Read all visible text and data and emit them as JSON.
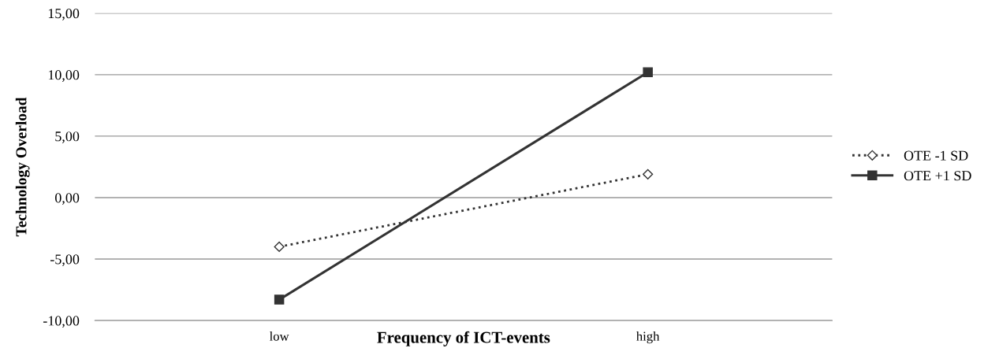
{
  "chart_data": {
    "type": "line",
    "xlabel": "Frequency of ICT-events",
    "ylabel": "Technology Overload",
    "categories": [
      "low",
      "high"
    ],
    "series": [
      {
        "name": "OTE -1 SD",
        "color": "#333333",
        "values": [
          -4.0,
          1.9
        ],
        "marker": "diamond",
        "line_style": "dotted"
      },
      {
        "name": "OTE +1 SD",
        "color": "#333333",
        "values": [
          -8.3,
          10.2
        ],
        "marker": "square",
        "line_style": "solid"
      }
    ],
    "ylim": [
      -10,
      15
    ],
    "yticks": [
      {
        "value": -10,
        "label": "-10,00"
      },
      {
        "value": -5,
        "label": "-5,00"
      },
      {
        "value": 0,
        "label": "0,00"
      },
      {
        "value": 5,
        "label": "5,00"
      },
      {
        "value": 10,
        "label": "10,00"
      },
      {
        "value": 15,
        "label": "15,00"
      }
    ],
    "grid": "y",
    "legend": "right"
  }
}
